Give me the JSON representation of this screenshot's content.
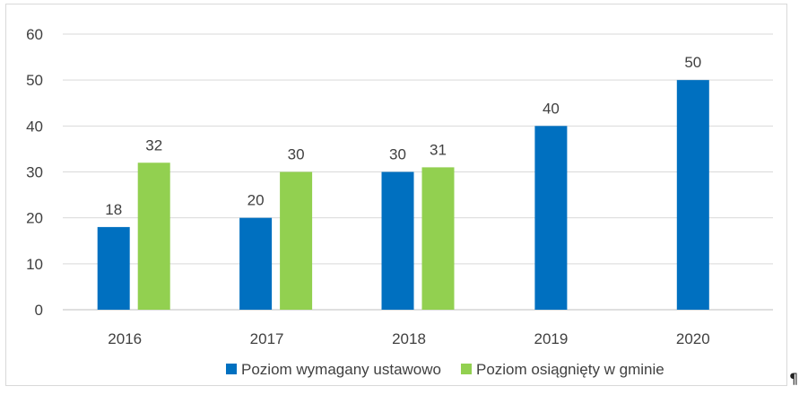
{
  "chart_data": {
    "type": "bar",
    "categories": [
      "2016",
      "2017",
      "2018",
      "2019",
      "2020"
    ],
    "series": [
      {
        "name": "Poziom wymagany ustawowo",
        "color": "#0070c0",
        "values": [
          18,
          20,
          30,
          40,
          50
        ]
      },
      {
        "name": "Poziom osiągnięty w gminie",
        "color": "#92d050",
        "values": [
          32,
          30,
          31,
          null,
          null
        ]
      }
    ],
    "ylim": [
      0,
      60
    ],
    "yticks": [
      "0",
      "10",
      "20",
      "30",
      "40",
      "50",
      "60"
    ],
    "grid": true,
    "legend": "bottom"
  },
  "pilcrow": "¶"
}
